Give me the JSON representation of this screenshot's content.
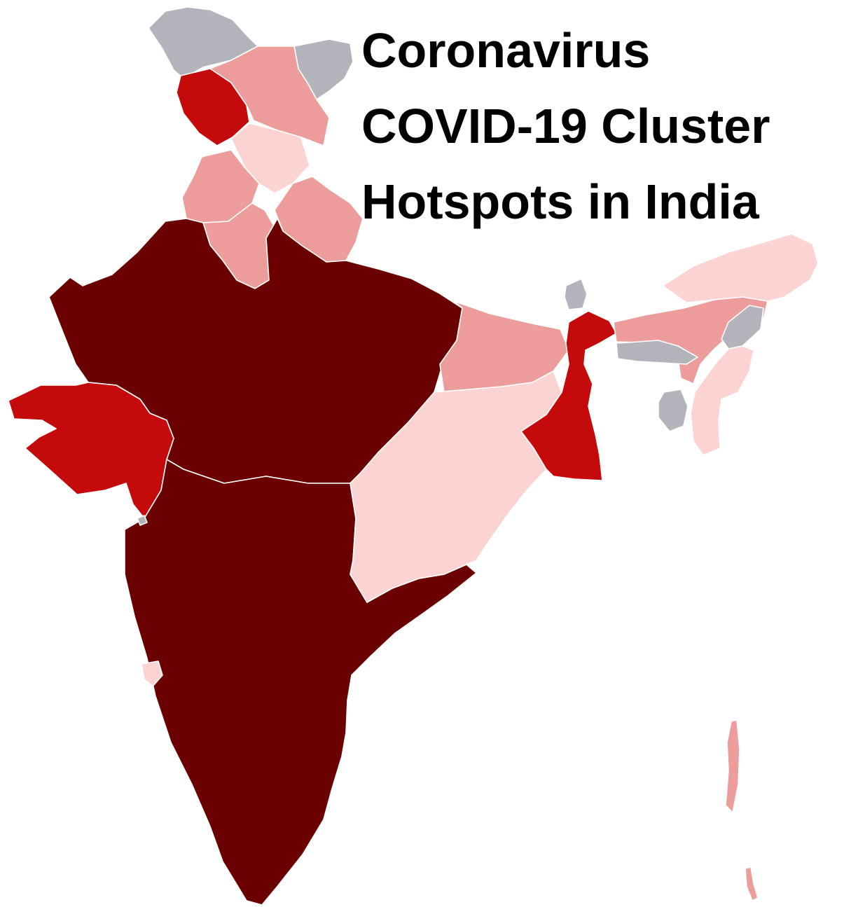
{
  "title": {
    "line1": "Coronavirus",
    "line2": "COVID-19 Cluster",
    "line3": "Hotspots in India"
  },
  "colors": {
    "very_high": "#6b0000",
    "high": "#c40a0a",
    "medium": "#ed9c9c",
    "low": "#fbd3d3",
    "no_data": "#b3b3bb",
    "border": "#ffffff",
    "background": "#ffffff"
  },
  "regions": [
    {
      "id": "gilgit-baltistan",
      "level": "no_data"
    },
    {
      "id": "aksai-chin",
      "level": "no_data"
    },
    {
      "id": "jammu-kashmir",
      "level": "high"
    },
    {
      "id": "ladakh",
      "level": "medium"
    },
    {
      "id": "himachal-pradesh",
      "level": "low"
    },
    {
      "id": "punjab",
      "level": "medium"
    },
    {
      "id": "haryana",
      "level": "medium"
    },
    {
      "id": "uttarakhand",
      "level": "medium"
    },
    {
      "id": "rajasthan-mp-up",
      "level": "very_high"
    },
    {
      "id": "gujarat",
      "level": "high"
    },
    {
      "id": "maharashtra-south",
      "level": "very_high"
    },
    {
      "id": "bihar",
      "level": "medium"
    },
    {
      "id": "jharkhand-chhattisgarh-odisha",
      "level": "low"
    },
    {
      "id": "west-bengal",
      "level": "high"
    },
    {
      "id": "sikkim",
      "level": "no_data"
    },
    {
      "id": "arunachal-pradesh",
      "level": "low"
    },
    {
      "id": "assam",
      "level": "medium"
    },
    {
      "id": "meghalaya",
      "level": "no_data"
    },
    {
      "id": "nagaland",
      "level": "no_data"
    },
    {
      "id": "manipur-mizoram",
      "level": "low"
    },
    {
      "id": "tripura",
      "level": "no_data"
    },
    {
      "id": "goa",
      "level": "low"
    },
    {
      "id": "andaman-nicobar",
      "level": "medium"
    },
    {
      "id": "dadra-nagar-haveli",
      "level": "no_data"
    }
  ]
}
